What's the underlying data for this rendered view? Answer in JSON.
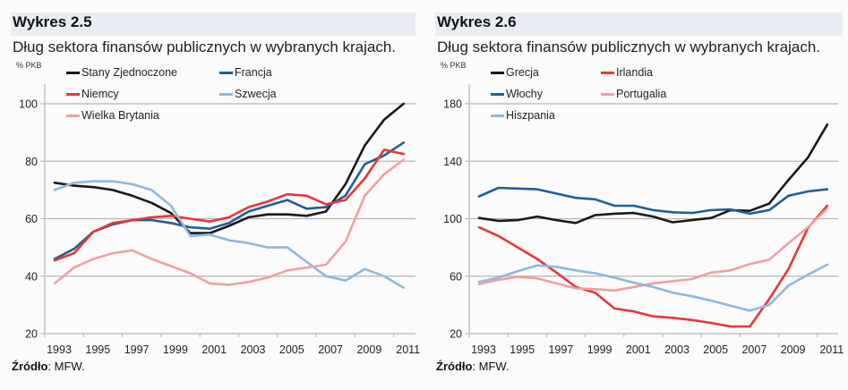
{
  "chart_data": [
    {
      "type": "line",
      "id": "left",
      "label": "Wykres 2.5",
      "title": "Dług sektora finansów publicznych w wybranych krajach.",
      "ylabel": "% PKB",
      "xlabel": "",
      "ylim": [
        20,
        100
      ],
      "yticks": [
        20,
        40,
        60,
        80,
        100
      ],
      "x": [
        1993,
        1994,
        1995,
        1996,
        1997,
        1998,
        1999,
        2000,
        2001,
        2002,
        2003,
        2004,
        2005,
        2006,
        2007,
        2008,
        2009,
        2010,
        2011
      ],
      "xtick_labels": [
        "1993",
        "1995",
        "1997",
        "1999",
        "2001",
        "2003",
        "2005",
        "2007",
        "2009",
        "2011"
      ],
      "grid": true,
      "legend_position": "top-left",
      "series": [
        {
          "name": "Stany Zjednoczone",
          "color": "#1a1a1a",
          "values": [
            72.5,
            71.5,
            71,
            70,
            68,
            65.5,
            62,
            55,
            55,
            57.5,
            60.5,
            61.5,
            61.5,
            61,
            62.5,
            72,
            85.5,
            94.5,
            100
          ]
        },
        {
          "name": "Francja",
          "color": "#1f5f94",
          "values": [
            46,
            49.5,
            55.5,
            58,
            59.5,
            59.5,
            58.5,
            57,
            56.5,
            58.5,
            62.5,
            64.5,
            66.5,
            63.5,
            64,
            68,
            79,
            82,
            86.5
          ]
        },
        {
          "name": "Niemcy",
          "color": "#e8363a",
          "values": [
            45.5,
            48,
            55.5,
            58.5,
            59.5,
            60.5,
            61,
            60,
            59,
            60.5,
            64,
            66,
            68.5,
            68,
            65,
            66.5,
            74,
            84,
            82.5
          ]
        },
        {
          "name": "Szwecja",
          "color": "#8fb8dd",
          "values": [
            70,
            72.5,
            73,
            73,
            72,
            70,
            64.5,
            54,
            54.5,
            52.5,
            51.5,
            50,
            50,
            45,
            40,
            38.5,
            42.5,
            40,
            36
          ]
        },
        {
          "name": "Wielka Brytania",
          "color": "#f2a0a0",
          "values": [
            37.5,
            43,
            46,
            48,
            49,
            46,
            43.5,
            41,
            37.5,
            37,
            38,
            39.5,
            42,
            43,
            44,
            52,
            68,
            75.5,
            80.5
          ]
        }
      ],
      "source_label": "Źródło",
      "source_text": ": MFW."
    },
    {
      "type": "line",
      "id": "right",
      "label": "Wykres 2.6",
      "title": "Dług sektora finansów publicznych w wybranych krajach.",
      "ylabel": "% PKB",
      "xlabel": "",
      "ylim": [
        20,
        180
      ],
      "yticks": [
        20,
        60,
        100,
        140,
        180
      ],
      "x": [
        1993,
        1994,
        1995,
        1996,
        1997,
        1998,
        1999,
        2000,
        2001,
        2002,
        2003,
        2004,
        2005,
        2006,
        2007,
        2008,
        2009,
        2010,
        2011
      ],
      "xtick_labels": [
        "1993",
        "1995",
        "1997",
        "1999",
        "2001",
        "2003",
        "2005",
        "2007",
        "2009",
        "2011"
      ],
      "grid": true,
      "legend_position": "top-left",
      "series": [
        {
          "name": "Grecja",
          "color": "#1a1a1a",
          "values": [
            100.5,
            98.5,
            99,
            101.5,
            99,
            97,
            102.5,
            103.5,
            104,
            101.5,
            97.5,
            99,
            100.5,
            106,
            105.5,
            110.5,
            127,
            142.5,
            165.5
          ]
        },
        {
          "name": "Irlandia",
          "color": "#e8363a",
          "values": [
            94,
            88,
            80,
            72,
            62.5,
            52.5,
            48.5,
            37.5,
            35.5,
            32,
            31,
            29.5,
            27.5,
            25,
            25,
            44,
            65,
            93.5,
            109
          ]
        },
        {
          "name": "Włochy",
          "color": "#1f5f94",
          "values": [
            115.5,
            121.5,
            121,
            120.5,
            117.5,
            114.5,
            113.5,
            109,
            109,
            106,
            104.5,
            104,
            106,
            106.5,
            103.5,
            106,
            116,
            119,
            120.5
          ]
        },
        {
          "name": "Portugalia",
          "color": "#f2a0a0",
          "values": [
            54.5,
            57.5,
            59.5,
            58.5,
            55,
            51.5,
            51,
            50,
            52.5,
            55,
            56.5,
            58,
            62.5,
            64,
            68.5,
            71.5,
            83,
            94,
            107
          ]
        },
        {
          "name": "Hiszpania",
          "color": "#8fb8dd",
          "values": [
            56,
            59,
            63.5,
            67.5,
            66.5,
            64,
            62,
            59,
            55.5,
            52.5,
            48.5,
            46,
            43,
            39.5,
            36,
            40,
            53.5,
            61,
            68
          ]
        }
      ],
      "source_label": "Źródło",
      "source_text": ": MFW."
    }
  ]
}
